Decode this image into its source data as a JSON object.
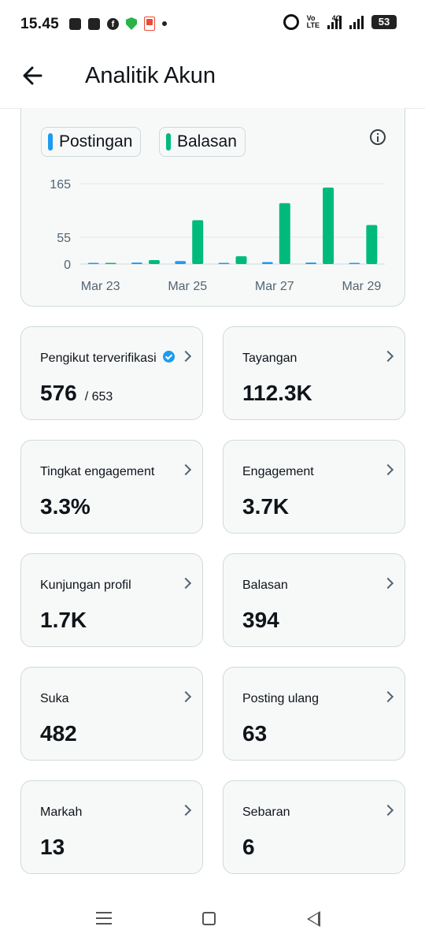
{
  "status_bar": {
    "time": "15.45",
    "volte_line1": "Vo",
    "volte_line2": "LTE",
    "network": "4G",
    "battery": "53"
  },
  "header": {
    "title": "Analitik Akun"
  },
  "colors": {
    "posts": "#1d9bf0",
    "replies": "#00ba7c",
    "card_bg": "#f7f9f9",
    "card_border": "#cfd9de"
  },
  "chart_data": {
    "type": "bar",
    "title": "",
    "xlabel": "",
    "ylabel": "",
    "categories": [
      "Mar 23",
      "Mar 24",
      "Mar 25",
      "Mar 26",
      "Mar 27",
      "Mar 28",
      "Mar 29"
    ],
    "x_tick_labels": [
      "Mar 23",
      "Mar 25",
      "Mar 27",
      "Mar 29"
    ],
    "y_ticks": [
      0,
      55,
      165
    ],
    "ylim": [
      0,
      165
    ],
    "grid": true,
    "legend_position": "top-left",
    "series": [
      {
        "name": "Postingan",
        "color": "#1d9bf0",
        "values": [
          1,
          3,
          6,
          1,
          4,
          3,
          0
        ]
      },
      {
        "name": "Balasan",
        "color": "#00ba7c",
        "values": [
          0,
          8,
          90,
          16,
          125,
          157,
          80
        ]
      }
    ]
  },
  "stats": [
    {
      "label": "Pengikut terverifikasi",
      "value": "576",
      "sub": "/ 653",
      "verified": true
    },
    {
      "label": "Tayangan",
      "value": "112.3K"
    },
    {
      "label": "Tingkat engagement",
      "value": "3.3%"
    },
    {
      "label": "Engagement",
      "value": "3.7K"
    },
    {
      "label": "Kunjungan profil",
      "value": "1.7K"
    },
    {
      "label": "Balasan",
      "value": "394"
    },
    {
      "label": "Suka",
      "value": "482"
    },
    {
      "label": "Posting ulang",
      "value": "63"
    },
    {
      "label": "Markah",
      "value": "13"
    },
    {
      "label": "Sebaran",
      "value": "6"
    }
  ]
}
